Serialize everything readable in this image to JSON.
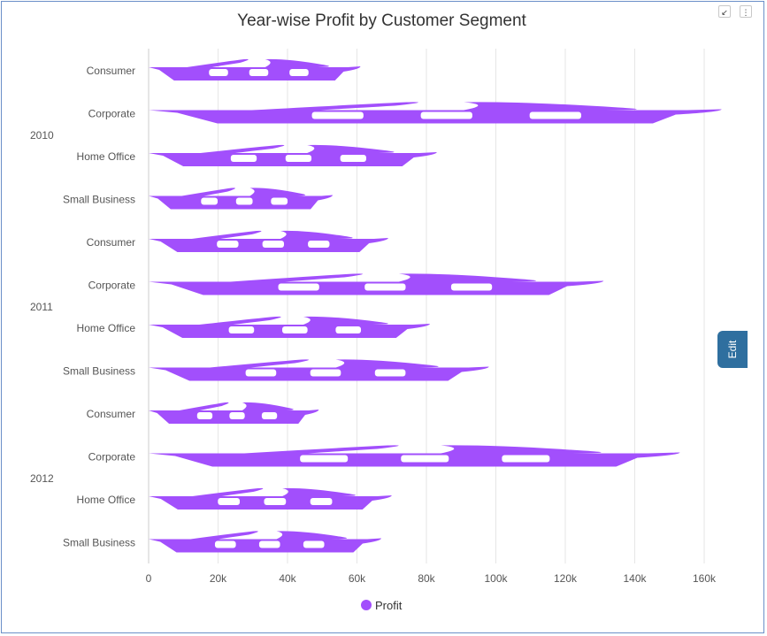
{
  "colors": {
    "bar": "#a24ffc",
    "grid": "#e6e6e6",
    "axis_text": "#555555"
  },
  "toolbar": {
    "collapse_icon": "collapse-icon",
    "menu_icon": "more-vertical-icon"
  },
  "edit_tab": {
    "label": "Edit"
  },
  "chart_data": {
    "type": "bar",
    "orientation": "horizontal",
    "title": "Year-wise Profit by Customer Segment",
    "xlabel": "",
    "ylabel": "",
    "xlim": [
      0,
      160000
    ],
    "xticks": [
      0,
      20000,
      40000,
      60000,
      80000,
      100000,
      120000,
      140000,
      160000
    ],
    "xtick_labels": [
      "0",
      "20k",
      "40k",
      "60k",
      "80k",
      "100k",
      "120k",
      "140k",
      "160k"
    ],
    "grid": "vertical",
    "legend": "bottom",
    "groups": [
      {
        "label": "2010",
        "categories": [
          "Consumer",
          "Corporate",
          "Home Office",
          "Small Business"
        ],
        "values": [
          61000,
          165000,
          83000,
          53000
        ]
      },
      {
        "label": "2011",
        "categories": [
          "Consumer",
          "Corporate",
          "Home Office",
          "Small Business"
        ],
        "values": [
          69000,
          131000,
          81000,
          98000
        ]
      },
      {
        "label": "2012",
        "categories": [
          "Consumer",
          "Corporate",
          "Home Office",
          "Small Business"
        ],
        "values": [
          49000,
          153000,
          70000,
          67000
        ]
      }
    ],
    "series": [
      {
        "name": "Profit"
      }
    ]
  }
}
